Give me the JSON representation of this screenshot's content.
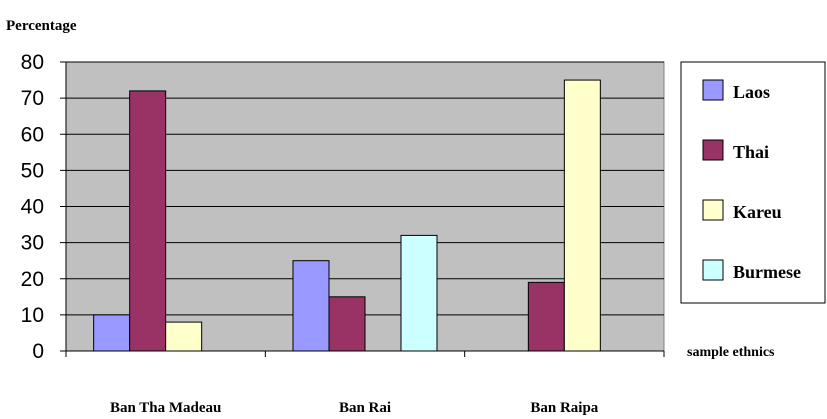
{
  "chart_data": {
    "type": "bar",
    "ylabel": "Percentage",
    "xlabel": "sample ethnics",
    "categories": [
      "Ban Tha Madeau",
      "Ban Rai",
      "Ban Raipa"
    ],
    "series": [
      {
        "name": "Laos",
        "values": [
          10,
          25,
          0
        ],
        "color": "#9999ff"
      },
      {
        "name": "Thai",
        "values": [
          72,
          15,
          19
        ],
        "color": "#993366"
      },
      {
        "name": "Kareu",
        "values": [
          8,
          0,
          75
        ],
        "color": "#ffffcc"
      },
      {
        "name": "Burmese",
        "values": [
          0,
          32,
          0
        ],
        "color": "#ccffff"
      }
    ],
    "ylim": [
      0,
      80
    ],
    "yticks": [
      "0",
      "10",
      "20",
      "30",
      "40",
      "50",
      "60",
      "70",
      "80"
    ],
    "grid": true,
    "plot_background": "#c0c0c0",
    "legend_position": "right"
  }
}
